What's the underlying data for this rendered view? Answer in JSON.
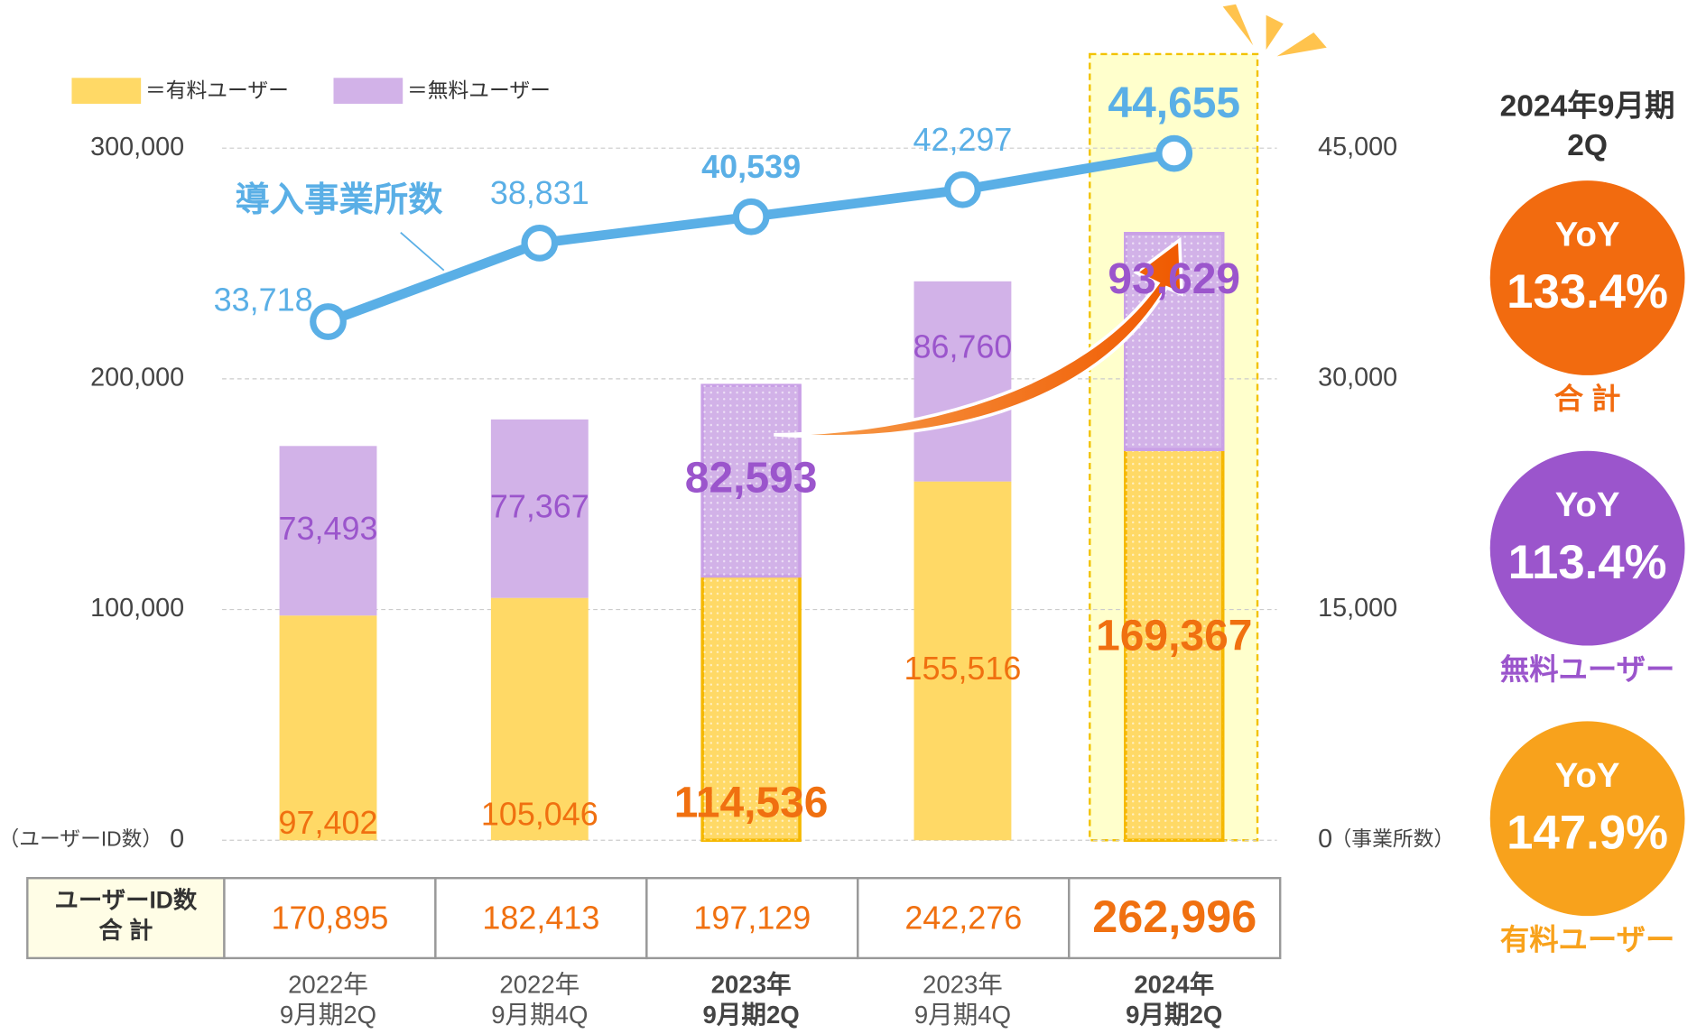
{
  "chart_data": {
    "type": "bar",
    "stacked": true,
    "categories": [
      [
        "2022年",
        "9月期2Q"
      ],
      [
        "2022年",
        "9月期4Q"
      ],
      [
        "2023年",
        "9月期2Q"
      ],
      [
        "2023年",
        "9月期4Q"
      ],
      [
        "2024年",
        "9月期2Q"
      ]
    ],
    "series": [
      {
        "name": "＝有料ユーザー",
        "color": "#ffd966",
        "label_color": "#f07010",
        "values": [
          97402,
          105046,
          114536,
          155516,
          169367
        ],
        "value_labels": [
          "97,402",
          "105,046",
          "114,536",
          "155,516",
          "169,367"
        ]
      },
      {
        "name": "＝無料ユーザー",
        "color": "#d2b2e8",
        "label_color": "#9b55cc",
        "values": [
          73493,
          77367,
          82593,
          86760,
          93629
        ],
        "value_labels": [
          "73,493",
          "77,367",
          "82,593",
          "86,760",
          "93,629"
        ]
      },
      {
        "name": "導入事業所数",
        "type": "line",
        "axis": "y2",
        "color": "#5aafe6",
        "values": [
          33718,
          38831,
          40539,
          42297,
          44655
        ],
        "value_labels": [
          "33,718",
          "38,831",
          "40,539",
          "42,297",
          "44,655"
        ]
      }
    ],
    "ylim": [
      0,
      300000
    ],
    "yticks": [
      0,
      {
        "value": 100000,
        "label": "100,000"
      },
      {
        "value": 200000,
        "label": "200,000"
      },
      {
        "value": 300000,
        "label": "300,000"
      }
    ],
    "y2lim": [
      0,
      45000
    ],
    "y2ticks": [
      0,
      {
        "value": 15000,
        "label": "15,000"
      },
      {
        "value": 30000,
        "label": "30,000"
      },
      {
        "value": 45000,
        "label": "45,000"
      }
    ],
    "ylabel": "（ユーザーID数）",
    "y2label": "（事業所数）",
    "grid": true,
    "totals": {
      "header": [
        "ユーザーID数",
        "合 計"
      ],
      "values": [
        170895,
        182413,
        197129,
        242276,
        262996
      ],
      "value_labels": [
        "170,895",
        "182,413",
        "197,129",
        "242,276",
        "262,996"
      ]
    }
  },
  "yoy": {
    "title": [
      "2024年9月期",
      "2Q"
    ],
    "items": [
      {
        "label": "YoY",
        "value": 133.4,
        "value_label": "133.4%",
        "name": "合 計",
        "color": "#f26b0f"
      },
      {
        "label": "YoY",
        "value": 113.4,
        "value_label": "113.4%",
        "name": "無料ユーザー",
        "color": "#9b55cc"
      },
      {
        "label": "YoY",
        "value": 147.9,
        "value_label": "147.9%",
        "name": "有料ユーザー",
        "color": "#f8a21c"
      }
    ]
  }
}
